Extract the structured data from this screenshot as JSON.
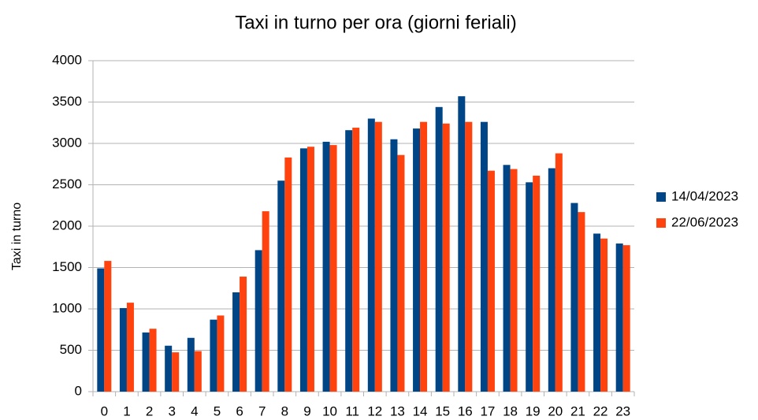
{
  "chart_data": {
    "type": "bar",
    "title": "Taxi in turno per ora (giorni feriali)",
    "y_label": "Taxi in turno",
    "categories": [
      "0",
      "1",
      "2",
      "3",
      "4",
      "5",
      "6",
      "7",
      "8",
      "9",
      "10",
      "11",
      "12",
      "13",
      "14",
      "15",
      "16",
      "17",
      "18",
      "19",
      "20",
      "21",
      "22",
      "23"
    ],
    "series": [
      {
        "name": "14/04/2023",
        "color": "#004586",
        "values": [
          1490,
          1010,
          715,
          555,
          650,
          870,
          1200,
          1710,
          2550,
          2940,
          3020,
          3160,
          3300,
          3050,
          3180,
          3440,
          3570,
          3260,
          2740,
          2530,
          2700,
          2280,
          1910,
          1790
        ]
      },
      {
        "name": "22/06/2023",
        "color": "#ff420e",
        "values": [
          1580,
          1075,
          760,
          475,
          490,
          920,
          1390,
          2180,
          2830,
          2960,
          2980,
          3190,
          3260,
          2860,
          3260,
          3240,
          3260,
          2670,
          2690,
          2610,
          2880,
          2170,
          1850,
          1770
        ]
      }
    ],
    "ylim": [
      0,
      4000
    ],
    "yticks": [
      0,
      500,
      1000,
      1500,
      2000,
      2500,
      3000,
      3500,
      4000
    ],
    "grid": true,
    "legend": "right"
  }
}
